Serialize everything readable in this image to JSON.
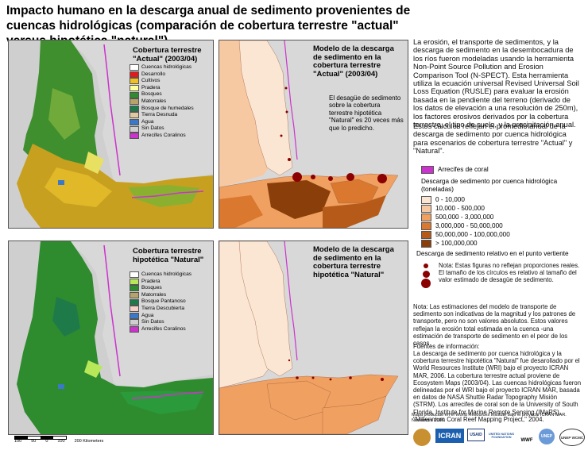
{
  "title": "Impacto humano en la descarga anual de sedimento provenientes de cuencas hidrológicas (comparación de cobertura terrestre \"actual\" versus hipotética \"natural\")",
  "panels": {
    "actual_cover": {
      "title": "Cobertura terrestre \"Actual\" (2003/04)"
    },
    "actual_model": {
      "title": "Modelo de la descarga de sedimento en la cobertura terrestre \"Actual\" (2003/04)",
      "note": "El desagüe de sedimento sobre la cobertura terrestre hipotética \"Natural\" es 20 veces más que lo predicho."
    },
    "natural_cover": {
      "title": "Cobertura terrestre hipotética \"Natural\""
    },
    "natural_model": {
      "title": "Modelo de la descarga de sedimento en la cobertura terrestre hipotética \"Natural\""
    }
  },
  "legend_actual": [
    {
      "label": "Cuencas hidrológicas",
      "color": "#ffffff"
    },
    {
      "label": "Desarrollo",
      "color": "#e31a1c"
    },
    {
      "label": "Cultivos",
      "color": "#f0c020"
    },
    {
      "label": "Pradera",
      "color": "#ffff99"
    },
    {
      "label": "Bosques",
      "color": "#2e8b2e"
    },
    {
      "label": "Matorrales",
      "color": "#b5a36a"
    },
    {
      "label": "Bosque de humedales",
      "color": "#1f7a4a"
    },
    {
      "label": "Tierra Desnuda",
      "color": "#e0c8a0"
    },
    {
      "label": "Agua",
      "color": "#3a78c8"
    },
    {
      "label": "Sin Datos",
      "color": "#cfcfcf"
    },
    {
      "label": "Arrecifes Coralinos",
      "color": "#cc33cc"
    }
  ],
  "legend_natural": [
    {
      "label": "Cuencas hidrológicas",
      "color": "#ffffff"
    },
    {
      "label": "Pradera",
      "color": "#b8e85a"
    },
    {
      "label": "Bosques",
      "color": "#2e8b2e"
    },
    {
      "label": "Matorrales",
      "color": "#b5a36a"
    },
    {
      "label": "Bosque Pantanoso",
      "color": "#1f7a4a"
    },
    {
      "label": "Tierra Descubierta",
      "color": "#f5d0c8"
    },
    {
      "label": "Agua",
      "color": "#3a78c8"
    },
    {
      "label": "Sin Datos",
      "color": "#cfcfcf"
    },
    {
      "label": "Arrecifes Coralinos",
      "color": "#cc33cc"
    }
  ],
  "right_text": {
    "p1": "La erosión, el transporte de sedimentos, y la descarga de sedimento en la desembocadura de los ríos fueron modeladas usando la herramienta Non-Point Source Pollution and Erosion Comparison Tool (N-SPECT). Esta herramienta utiliza la ecuación universal Revised Universal Soil Loss Equation (RUSLE) para evaluar la erosión basada en la pendiente del terreno (derivado de los datos de elevación a una resolución de 250m), los factores erosivos derivados por la cobertura terrestre, el tipo de suelo, y la precipitación anual.",
    "p2": "Estos cálculos reflejan el promedio anual de la descarga de sedimento por cuenca hidrológica para escenarios de cobertura terrestre \"Actual\" y \"Natural\".",
    "reef_label": "Arrecifes de coral",
    "discharge_title": "Descarga de sedimento por cuenca hidrológica (toneladas)",
    "classes": [
      {
        "label": "0 - 10,000",
        "color": "#fbe6d4"
      },
      {
        "label": "10,000 - 500,000",
        "color": "#f7c9a3"
      },
      {
        "label": "500,000 - 3,000,000",
        "color": "#f0a060"
      },
      {
        "label": "3,000,000 - 50,000,000",
        "color": "#d9782e"
      },
      {
        "label": "50,000,000 - 100,000,000",
        "color": "#b55a18"
      },
      {
        "label": "> 100,000,000",
        "color": "#8a3f0a"
      }
    ],
    "relative_title": "Descarga de sedimento relativo en el punto vertiente",
    "circle_note": "Nota: Estas figuras no reflejan proporciones reales. El tamaño de los círculos es relativo al tamaño del valor estimado de desagüe de sedimento.",
    "note2": "Nota: Las estimaciones del modelo de transporte de sedimento son indicativas de la magnitud y los patrones de transporte, pero no son valores absolutos. Estos valores reflejan la erosión total estimada en la cuenca -una estimación de transporte de sedimento en el peor de los casos.",
    "sources_title": "Fuentes de información:",
    "sources": "La descarga de sedimento por cuenca hidrológica y la cobertura terrestre hipotética \"Natural\" fue desarollado por el World Resources Institute (WRI) bajo el proyecto ICRAN MAR, 2006. La cobertura terrestre actual proviene de Ecosystem Maps (2003/04). Las cuencas hidrológicas fueron delineadas por el WRI bajo el proyecto ICRAN MAR, basada en datos de NASA Shuttle Radar Topography Misión (STRM). Los arrecifes de coral son de la University of South Florida, Institute for Marine Remote Sensing (IMaRS), \"Millennium Coral Reef Mapping Project,\" 2004.",
    "credit": "Mapa producido en el World Resources Institute bajo el proyecto ICRAN MAR. Noviembre 2006."
  },
  "scale": {
    "ticks": [
      "100",
      "50",
      "0",
      "100",
      "200 Kilometers"
    ]
  },
  "logos": [
    "ICRAN",
    "USAID",
    "UNITED NATIONS FOUNDATION",
    "WWF",
    "UNEP",
    "UNEP WCMC"
  ]
}
